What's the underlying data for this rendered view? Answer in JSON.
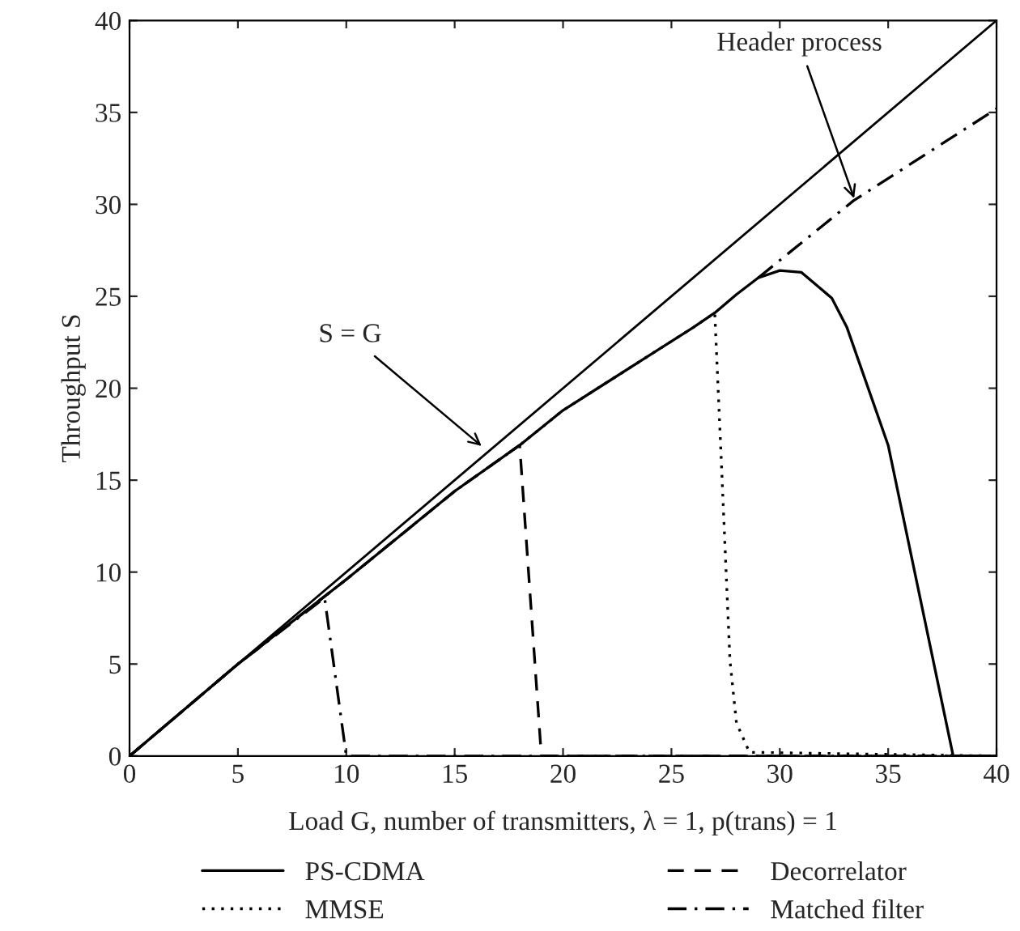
{
  "chart_data": {
    "type": "line",
    "xlabel": "Load G, number of transmitters, λ = 1, p(trans) = 1",
    "ylabel": "Throughput S",
    "xlim": [
      0,
      40
    ],
    "ylim": [
      0,
      40
    ],
    "xticks": [
      0,
      5,
      10,
      15,
      20,
      25,
      30,
      35,
      40
    ],
    "yticks": [
      0,
      5,
      10,
      15,
      20,
      25,
      30,
      35,
      40
    ],
    "grid": false,
    "legend": "bottom",
    "marker": "none",
    "series": [
      {
        "name": "PS-CDMA",
        "color": "#000000",
        "line_style": "solid",
        "x": [
          0,
          5,
          10,
          15,
          18,
          20,
          22,
          24,
          26,
          27,
          28,
          29,
          30,
          31,
          32.4,
          33.1,
          35,
          38,
          40
        ],
        "values": [
          0,
          5,
          9.6,
          14.4,
          16.9,
          18.8,
          20.3,
          21.8,
          23.3,
          24.1,
          25.1,
          26.0,
          26.4,
          26.3,
          24.9,
          23.3,
          16.9,
          0,
          0
        ]
      },
      {
        "name": "MMSE",
        "color": "#000000",
        "line_style": "dotted",
        "x": [
          0,
          5,
          10,
          15,
          18,
          20,
          22,
          24,
          26,
          27,
          27.3,
          27.7,
          28,
          28.6,
          40
        ],
        "values": [
          0,
          5,
          9.6,
          14.4,
          16.9,
          18.8,
          20.3,
          21.8,
          23.3,
          24.1,
          16.1,
          5.2,
          1.8,
          0.2,
          0
        ]
      },
      {
        "name": "Decorrelator",
        "color": "#000000",
        "line_style": "dashed",
        "x": [
          0,
          5,
          10,
          15,
          18,
          19,
          40
        ],
        "values": [
          0,
          5,
          9.6,
          14.4,
          16.9,
          0,
          0
        ]
      },
      {
        "name": "Matched filter",
        "color": "#000000",
        "line_style": "dashdot",
        "x": [
          0,
          5,
          9,
          10,
          40
        ],
        "values": [
          0,
          5,
          8.6,
          0,
          0
        ]
      },
      {
        "color": "#000000",
        "line_style": "solid",
        "x": [
          0,
          40
        ],
        "values": [
          0,
          40
        ]
      },
      {
        "color": "#000000",
        "line_style": "dashdot",
        "x": [
          29,
          33.4,
          40
        ],
        "values": [
          26.0,
          30.2,
          35.2
        ]
      }
    ],
    "annotations": [
      {
        "text": "S = G",
        "x": 16.4,
        "y": 16.7
      },
      {
        "text": "Header process",
        "x": 33.5,
        "y": 30.1
      }
    ]
  }
}
